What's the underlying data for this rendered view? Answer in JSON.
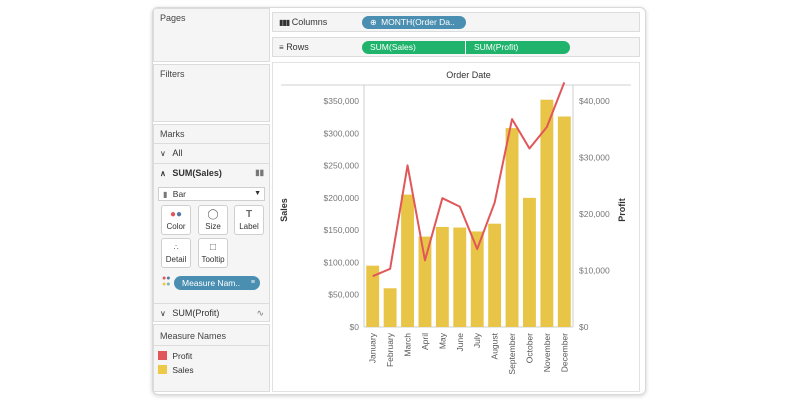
{
  "panels": {
    "pages": "Pages",
    "filters": "Filters",
    "marks": "Marks"
  },
  "marks": {
    "all": "All",
    "sales_card": "SUM(Sales)",
    "mark_type": "Bar",
    "buttons": [
      "Color",
      "Size",
      "Label",
      "Detail",
      "Tooltip"
    ],
    "measure_pill": "Measure Nam..",
    "profit_card": "SUM(Profit)"
  },
  "legend": {
    "title": "Measure Names",
    "items": [
      {
        "label": "Profit",
        "color": "#e15759"
      },
      {
        "label": "Sales",
        "color": "#edc948"
      }
    ]
  },
  "shelves": {
    "columns_label": "Columns",
    "columns_pill": "MONTH(Order Da..",
    "rows_label": "Rows",
    "rows_pills": [
      "SUM(Sales)",
      "SUM(Profit)"
    ]
  },
  "colors": {
    "bar": "#e8c547",
    "line": "#e15759",
    "pill_blue": "#4a8fb1",
    "pill_green": "#1fb36b"
  },
  "chart_data": {
    "type": "bar",
    "title": "Order Date",
    "categories": [
      "January",
      "February",
      "March",
      "April",
      "May",
      "June",
      "July",
      "August",
      "September",
      "October",
      "November",
      "December"
    ],
    "series": [
      {
        "name": "Sales",
        "axis": "left",
        "mark": "bar",
        "values": [
          95000,
          60000,
          205000,
          140000,
          155000,
          154000,
          148000,
          160000,
          308000,
          200000,
          352000,
          326000
        ]
      },
      {
        "name": "Profit",
        "axis": "right",
        "mark": "line",
        "values": [
          9000,
          10300,
          28600,
          11800,
          22800,
          21300,
          13800,
          22000,
          36800,
          31600,
          35400,
          43300
        ]
      }
    ],
    "ylabel_left": "Sales",
    "ylabel_right": "Profit",
    "ylim_left": [
      0,
      350000
    ],
    "ylim_right": [
      0,
      40000
    ],
    "left_ticks": [
      "$0",
      "$50,000",
      "$100,000",
      "$150,000",
      "$200,000",
      "$250,000",
      "$300,000",
      "$350,000"
    ],
    "right_ticks": [
      "$0",
      "$10,000",
      "$20,000",
      "$30,000",
      "$40,000"
    ],
    "grid": false
  }
}
